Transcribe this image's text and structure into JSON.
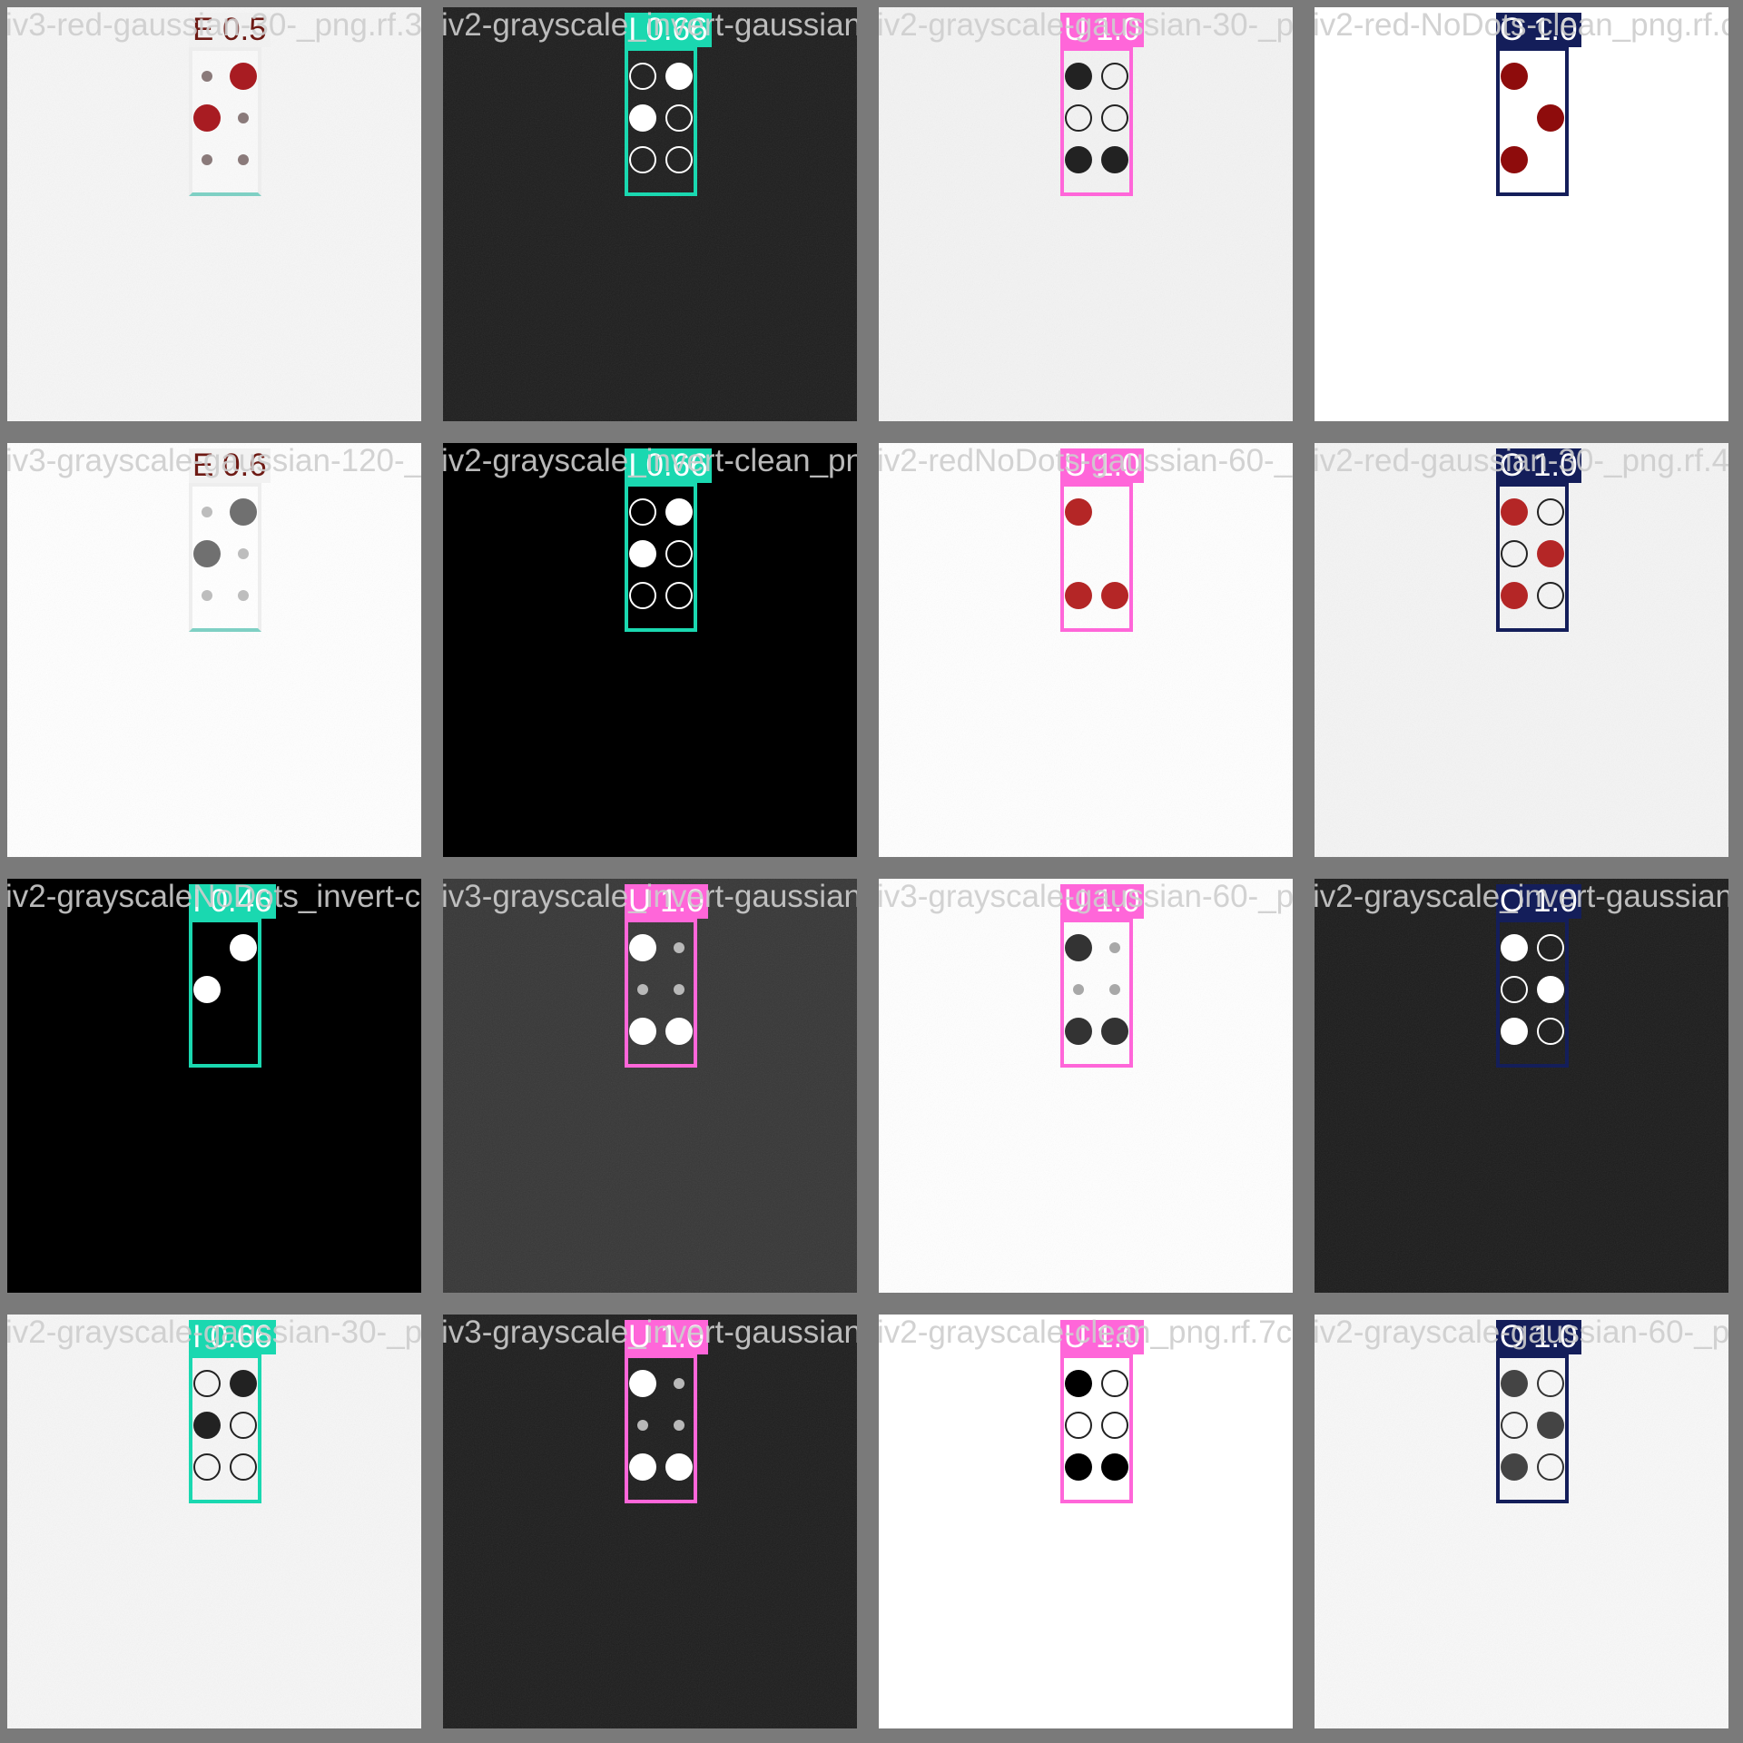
{
  "colors": {
    "frame": "#7a7a7a",
    "E": "#6e1a14",
    "I": "#1ad8b0",
    "U": "#ff66d9",
    "O": "#141e5a"
  },
  "tiles": [
    {
      "filename": "iv3-red-gaussian-30-_png.rf.3f15314c0cbe2",
      "bg": "#f6f6f6",
      "noise": true,
      "cls": "E",
      "conf": "0.5",
      "plain": true,
      "cells": [
        "s",
        "L",
        "L",
        "s",
        "s",
        "s"
      ],
      "dotColor": "#a81c22",
      "smallColor": "#8a7a7a"
    },
    {
      "filename": "iv2-grayscale_invert-gaussian-30-_png.rf",
      "bg": "#1e1e1e",
      "noise": true,
      "cls": "I",
      "conf": "0.66",
      "cells": [
        "o",
        "F",
        "F",
        "o",
        "o",
        "o"
      ],
      "dotColor": "#ffffff",
      "ringColor": "#ffffff"
    },
    {
      "filename": "iv2-grayscale-gaussian-30-_png.rf.da25938",
      "bg": "#f3f3f3",
      "noise": true,
      "cls": "U",
      "conf": "1.0",
      "cells": [
        "F",
        "o",
        "o",
        "o",
        "F",
        "F"
      ],
      "dotColor": "#222222",
      "ringColor": "#222222"
    },
    {
      "filename": "iv2-red-NoDots-clean_png.rf.c2a5bd1",
      "bg": "#ffffff",
      "noise": false,
      "cls": "O",
      "conf": "1.0",
      "cells": [
        "F",
        "",
        "",
        "F",
        "F",
        ""
      ],
      "dotColor": "#8e0c0c"
    },
    {
      "filename": "iv3-grayscale-gaussian-120-_png.rf.d5120",
      "bg": "#ffffff",
      "noise": true,
      "cls": "E",
      "conf": "0.6",
      "plain": true,
      "cells": [
        "s",
        "L",
        "L",
        "s",
        "s",
        "s"
      ],
      "dotColor": "#707070",
      "smallColor": "#bdbdbd"
    },
    {
      "filename": "iv2-grayscale_invert-clean_png.rf.55f6Da",
      "bg": "#000000",
      "noise": false,
      "cls": "I",
      "conf": "0.66",
      "cells": [
        "o",
        "F",
        "F",
        "o",
        "o",
        "o"
      ],
      "dotColor": "#ffffff",
      "ringColor": "#ffffff"
    },
    {
      "filename": "iv2-redNoDots-gaussian-60-_png.rf.4e2498",
      "bg": "#ffffff",
      "noise": true,
      "cls": "U",
      "conf": "1.0",
      "cells": [
        "F",
        "",
        "",
        "",
        "F",
        "F"
      ],
      "dotColor": "#b42626"
    },
    {
      "filename": "iv2-red-gaussian-30-_png.rf.4e2498",
      "bg": "#f4f4f4",
      "noise": true,
      "cls": "O",
      "conf": "1.0",
      "cells": [
        "F",
        "o",
        "o",
        "F",
        "F",
        "o"
      ],
      "dotColor": "#b42626",
      "ringColor": "#222222"
    },
    {
      "filename": "iv2-grayscaleNoDots_invert-clean_png.rf",
      "bg": "#000000",
      "noise": false,
      "cls": "I",
      "conf": "0.46",
      "cells": [
        "",
        "F",
        "F",
        "",
        "",
        ""
      ],
      "dotColor": "#ffffff"
    },
    {
      "filename": "iv3-grayscale_invert-gaussian-60-_png.rf",
      "bg": "#373737",
      "noise": true,
      "cls": "U",
      "conf": "1.0",
      "cells": [
        "F",
        "s",
        "s",
        "s",
        "F",
        "F"
      ],
      "dotColor": "#ffffff",
      "smallColor": "#b8b8b8"
    },
    {
      "filename": "iv3-grayscale-gaussian-60-_png.rf.dbc01",
      "bg": "#ffffff",
      "noise": true,
      "cls": "U",
      "conf": "1.0",
      "cells": [
        "F",
        "s",
        "s",
        "s",
        "F",
        "F"
      ],
      "dotColor": "#333333",
      "smallColor": "#a8a8a8"
    },
    {
      "filename": "iv2-grayscale_invert-gaussian",
      "bg": "#1c1c1c",
      "noise": true,
      "cls": "O",
      "conf": "1.0",
      "cells": [
        "F",
        "o",
        "o",
        "F",
        "F",
        "o"
      ],
      "dotColor": "#ffffff",
      "ringColor": "#ffffff"
    },
    {
      "filename": "iv2-grayscale-gaussian-30-_png.rf.9486a0",
      "bg": "#f6f6f6",
      "noise": true,
      "cls": "I",
      "conf": "0.66",
      "cells": [
        "o",
        "F",
        "F",
        "o",
        "o",
        "o"
      ],
      "dotColor": "#222222",
      "ringColor": "#222222"
    },
    {
      "filename": "iv3-grayscale_invert-gaussian-30-_png.rf",
      "bg": "#1e1e1e",
      "noise": true,
      "cls": "U",
      "conf": "1.0",
      "cells": [
        "F",
        "s",
        "s",
        "s",
        "F",
        "F"
      ],
      "dotColor": "#ffffff",
      "smallColor": "#b8b8b8"
    },
    {
      "filename": "iv2-grayscale-clean_png.rf.7c122d8e1c88",
      "bg": "#ffffff",
      "noise": false,
      "cls": "U",
      "conf": "1.0",
      "cells": [
        "F",
        "o",
        "o",
        "o",
        "F",
        "F"
      ],
      "dotColor": "#000000",
      "ringColor": "#222222"
    },
    {
      "filename": "iv2-grayscale-gaussian-60-_png.rf",
      "bg": "#f8f8f8",
      "noise": true,
      "cls": "O",
      "conf": "1.0",
      "cells": [
        "F",
        "o",
        "o",
        "F",
        "F",
        "o"
      ],
      "dotColor": "#444444",
      "ringColor": "#333333"
    }
  ]
}
